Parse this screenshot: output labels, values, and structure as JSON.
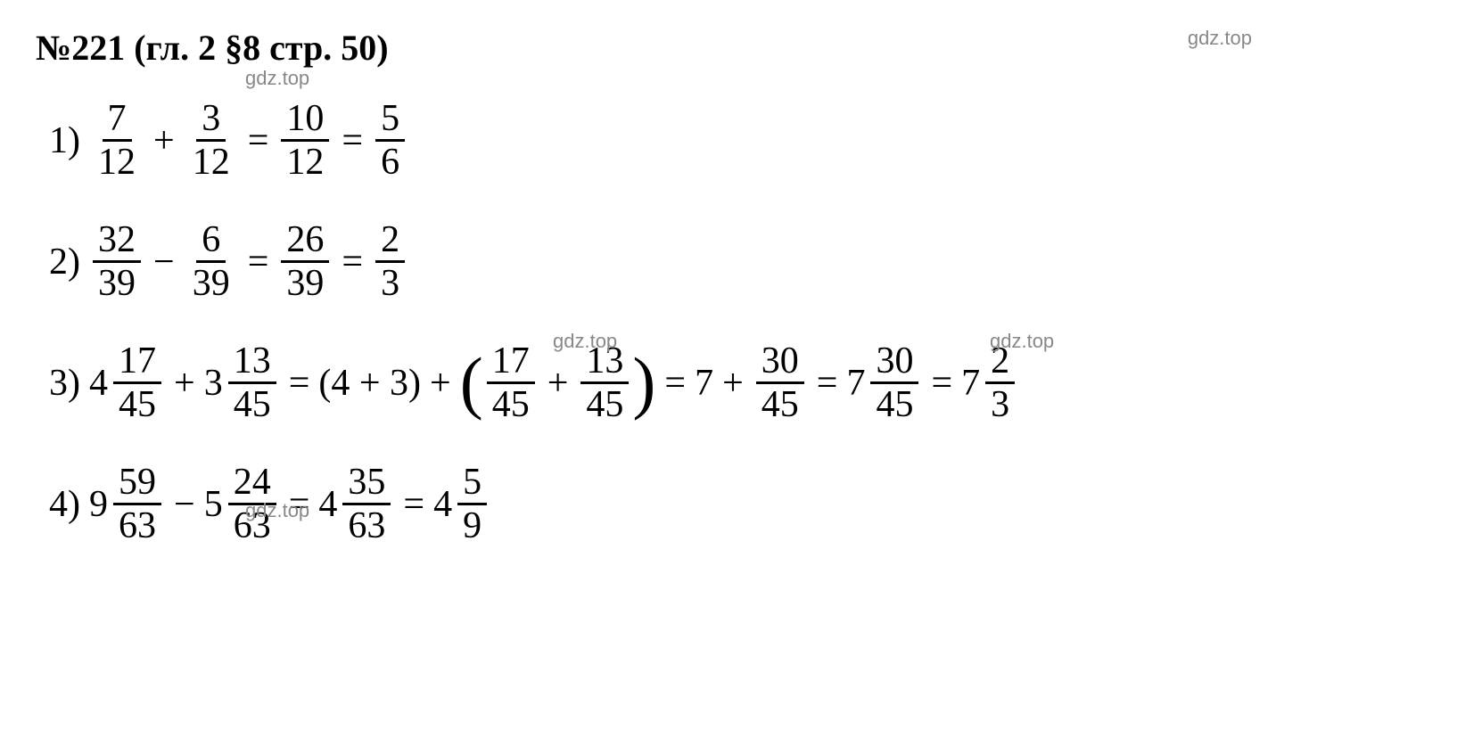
{
  "header": {
    "title": "№221 (гл. 2 §8 стр. 50)"
  },
  "watermarks": {
    "wm1": "gdz.top",
    "wm2": "gdz.top",
    "wm3": "gdz.top",
    "wm4": "gdz.top",
    "wm5": "gdz.top"
  },
  "equations": [
    {
      "index": "1)",
      "parts": [
        {
          "type": "frac",
          "num": "7",
          "den": "12"
        },
        {
          "type": "op",
          "val": "+"
        },
        {
          "type": "frac",
          "num": "3",
          "den": "12"
        },
        {
          "type": "op",
          "val": "="
        },
        {
          "type": "frac",
          "num": "10",
          "den": "12"
        },
        {
          "type": "op",
          "val": "="
        },
        {
          "type": "frac",
          "num": "5",
          "den": "6"
        }
      ]
    },
    {
      "index": "2)",
      "parts": [
        {
          "type": "frac",
          "num": "32",
          "den": "39"
        },
        {
          "type": "op",
          "val": "−"
        },
        {
          "type": "frac",
          "num": "6",
          "den": "39"
        },
        {
          "type": "op",
          "val": "="
        },
        {
          "type": "frac",
          "num": "26",
          "den": "39"
        },
        {
          "type": "op",
          "val": "="
        },
        {
          "type": "frac",
          "num": "2",
          "den": "3"
        }
      ]
    },
    {
      "index": "3)",
      "parts": [
        {
          "type": "mixed",
          "whole": "4",
          "num": "17",
          "den": "45"
        },
        {
          "type": "op",
          "val": "+"
        },
        {
          "type": "mixed",
          "whole": "3",
          "num": "13",
          "den": "45"
        },
        {
          "type": "op",
          "val": "="
        },
        {
          "type": "text",
          "val": "(4 + 3)"
        },
        {
          "type": "op",
          "val": "+"
        },
        {
          "type": "lparen"
        },
        {
          "type": "frac",
          "num": "17",
          "den": "45"
        },
        {
          "type": "op",
          "val": "+"
        },
        {
          "type": "frac",
          "num": "13",
          "den": "45"
        },
        {
          "type": "rparen"
        },
        {
          "type": "op",
          "val": "="
        },
        {
          "type": "text",
          "val": "7"
        },
        {
          "type": "op",
          "val": "+"
        },
        {
          "type": "frac",
          "num": "30",
          "den": "45"
        },
        {
          "type": "op",
          "val": "="
        },
        {
          "type": "mixed",
          "whole": "7",
          "num": "30",
          "den": "45"
        },
        {
          "type": "op",
          "val": "="
        },
        {
          "type": "mixed",
          "whole": "7",
          "num": "2",
          "den": "3"
        }
      ]
    },
    {
      "index": "4)",
      "parts": [
        {
          "type": "mixed",
          "whole": "9",
          "num": "59",
          "den": "63"
        },
        {
          "type": "op",
          "val": "−"
        },
        {
          "type": "mixed",
          "whole": "5",
          "num": "24",
          "den": "63"
        },
        {
          "type": "op",
          "val": "="
        },
        {
          "type": "mixed",
          "whole": "4",
          "num": "35",
          "den": "63"
        },
        {
          "type": "op",
          "val": "="
        },
        {
          "type": "mixed",
          "whole": "4",
          "num": "5",
          "den": "9"
        }
      ]
    }
  ],
  "styling": {
    "background_color": "#ffffff",
    "text_color": "#000000",
    "watermark_color": "#888888",
    "title_fontsize": 40,
    "equation_fontsize": 42,
    "watermark_fontsize": 22,
    "fraction_bar_width": 3,
    "font_family": "Times New Roman"
  }
}
